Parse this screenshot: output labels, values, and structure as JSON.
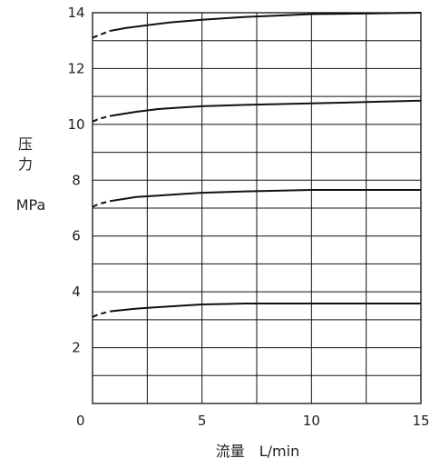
{
  "chart_data": {
    "type": "line",
    "title": "",
    "xlabel": "流量　L/min",
    "ylabel": {
      "line1": "压",
      "line2": "力",
      "unit": "MPa"
    },
    "xlim": [
      0,
      15
    ],
    "ylim": [
      0,
      14
    ],
    "x_ticks": [
      0,
      5,
      10,
      15
    ],
    "y_ticks": [
      2,
      4,
      6,
      8,
      10,
      12,
      14
    ],
    "grid": true,
    "x_grid_step": 2.5,
    "y_grid_step": 1,
    "dashed_until_x": 0.8,
    "series": [
      {
        "x": [
          0,
          0.3,
          0.8,
          1.5,
          2.5,
          3.5,
          5,
          7,
          8.5,
          10,
          12.5,
          15
        ],
        "y": [
          13.1,
          13.2,
          13.35,
          13.45,
          13.55,
          13.65,
          13.75,
          13.85,
          13.9,
          13.95,
          13.97,
          14.0
        ]
      },
      {
        "x": [
          0,
          0.3,
          0.8,
          2,
          3,
          4,
          5,
          7,
          10,
          12.5,
          15
        ],
        "y": [
          10.1,
          10.2,
          10.3,
          10.45,
          10.55,
          10.6,
          10.65,
          10.7,
          10.75,
          10.8,
          10.85
        ]
      },
      {
        "x": [
          0,
          0.3,
          0.8,
          2,
          3,
          4,
          5,
          7,
          10,
          12.5,
          15
        ],
        "y": [
          7.05,
          7.15,
          7.25,
          7.4,
          7.45,
          7.5,
          7.55,
          7.6,
          7.65,
          7.65,
          7.65
        ]
      },
      {
        "x": [
          0,
          0.3,
          0.8,
          2,
          3,
          4,
          5,
          7,
          10,
          12.5,
          15
        ],
        "y": [
          3.1,
          3.2,
          3.3,
          3.4,
          3.45,
          3.5,
          3.55,
          3.58,
          3.58,
          3.58,
          3.58
        ]
      }
    ]
  }
}
